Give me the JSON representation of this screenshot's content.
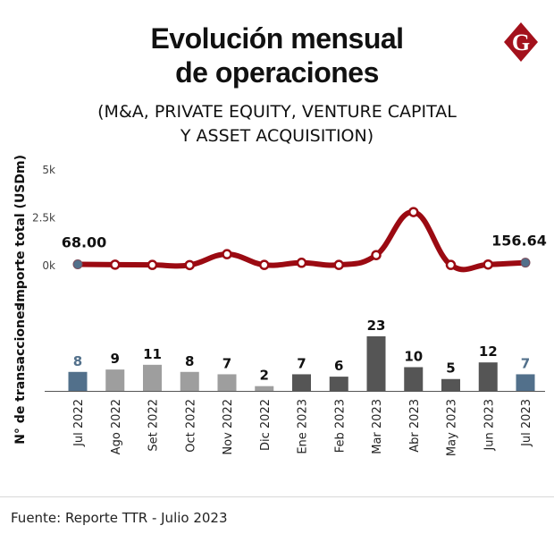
{
  "header": {
    "title_line1": "Evolución mensual",
    "title_line2": "de operaciones",
    "subtitle_line1": "(M&A, PRIVATE EQUITY, VENTURE CAPITAL",
    "subtitle_line2": "Y ASSET ACQUISITION)",
    "logo_letter": "G",
    "logo_icon": "diamond-g-logo"
  },
  "colors": {
    "line": "#9b0a12",
    "highlight": "#52708b",
    "bar_2022": "#9e9e9e",
    "bar_2023": "#555555",
    "logo": "#a3111c"
  },
  "footer": {
    "source": "Fuente: Reporte TTR - Julio 2023"
  },
  "chart_data": [
    {
      "type": "line",
      "title": "Importe total",
      "ylabel": "Importe total (USDm)",
      "xlabel": "",
      "ylim": [
        0,
        5000
      ],
      "yticks": [
        "0k",
        "2.5k",
        "5k"
      ],
      "ytick_values": [
        0,
        2500,
        5000
      ],
      "grid": false,
      "categories": [
        "Jul 2022",
        "Ago 2022",
        "Set 2022",
        "Oct 2022",
        "Nov 2022",
        "Dic 2022",
        "Ene 2023",
        "Feb 2023",
        "Mar 2023",
        "Abr 2023",
        "May 2023",
        "Jun 2023",
        "Jul 2023"
      ],
      "values": [
        68.0,
        50,
        40,
        30,
        600,
        40,
        150,
        40,
        550,
        2800,
        40,
        60,
        156.64
      ],
      "data_labels": [
        {
          "index": 0,
          "text": "68.00"
        },
        {
          "index": 12,
          "text": "156.64"
        }
      ],
      "highlighted_indices": [
        0,
        12
      ]
    },
    {
      "type": "bar",
      "title": "N° de transacciones",
      "ylabel": "N° de transacciones",
      "xlabel": "",
      "ylim": [
        0,
        25
      ],
      "grid": false,
      "categories": [
        "Jul 2022",
        "Ago 2022",
        "Set 2022",
        "Oct 2022",
        "Nov 2022",
        "Dic 2022",
        "Ene 2023",
        "Feb 2023",
        "Mar 2023",
        "Abr 2023",
        "May 2023",
        "Jun 2023",
        "Jul 2023"
      ],
      "values": [
        8,
        9,
        11,
        8,
        7,
        2,
        7,
        6,
        23,
        10,
        5,
        12,
        7
      ],
      "labels": [
        "8",
        "9",
        "11",
        "8",
        "7",
        "2",
        "7",
        "6",
        "23",
        "10",
        "5",
        "12",
        "7"
      ],
      "highlighted_indices": [
        0,
        12
      ]
    }
  ]
}
